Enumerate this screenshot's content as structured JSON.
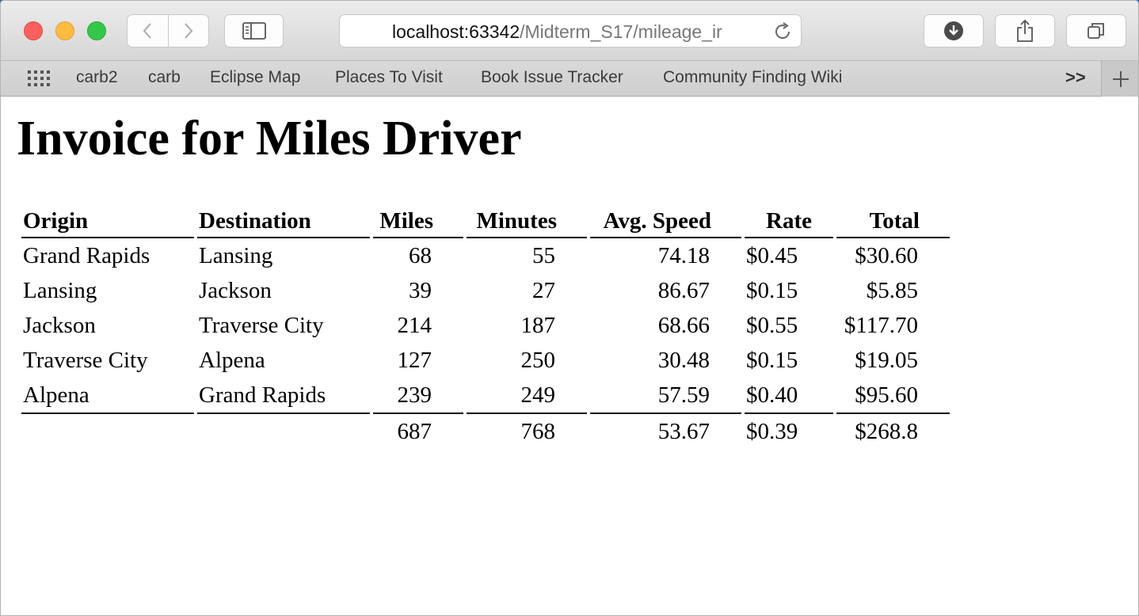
{
  "browser": {
    "url_host": "localhost:63342",
    "url_path": "/Midterm_S17/mileage_ir",
    "bookmarks": [
      "carb2",
      "carb",
      "Eclipse Map",
      "Places To Visit",
      "Book Issue Tracker",
      "Community Finding Wiki"
    ],
    "overflow_label": ">>"
  },
  "page": {
    "title": "Invoice for Miles Driver",
    "headers": {
      "origin": "Origin",
      "destination": "Destination",
      "miles": "Miles",
      "minutes": "Minutes",
      "speed": "Avg. Speed",
      "rate": "Rate",
      "total": "Total"
    },
    "rows": [
      {
        "origin": "Grand Rapids",
        "destination": "Lansing",
        "miles": "68",
        "minutes": "55",
        "speed": "74.18",
        "rate": "$0.45",
        "total": "$30.60"
      },
      {
        "origin": "Lansing",
        "destination": "Jackson",
        "miles": "39",
        "minutes": "27",
        "speed": "86.67",
        "rate": "$0.15",
        "total": "$5.85"
      },
      {
        "origin": "Jackson",
        "destination": "Traverse City",
        "miles": "214",
        "minutes": "187",
        "speed": "68.66",
        "rate": "$0.55",
        "total": "$117.70"
      },
      {
        "origin": "Traverse City",
        "destination": "Alpena",
        "miles": "127",
        "minutes": "250",
        "speed": "30.48",
        "rate": "$0.15",
        "total": "$19.05"
      },
      {
        "origin": "Alpena",
        "destination": "Grand Rapids",
        "miles": "239",
        "minutes": "249",
        "speed": "57.59",
        "rate": "$0.40",
        "total": "$95.60"
      }
    ],
    "totals": {
      "miles": "687",
      "minutes": "768",
      "speed": "53.67",
      "rate": "$0.39",
      "total": "$268.8"
    }
  }
}
